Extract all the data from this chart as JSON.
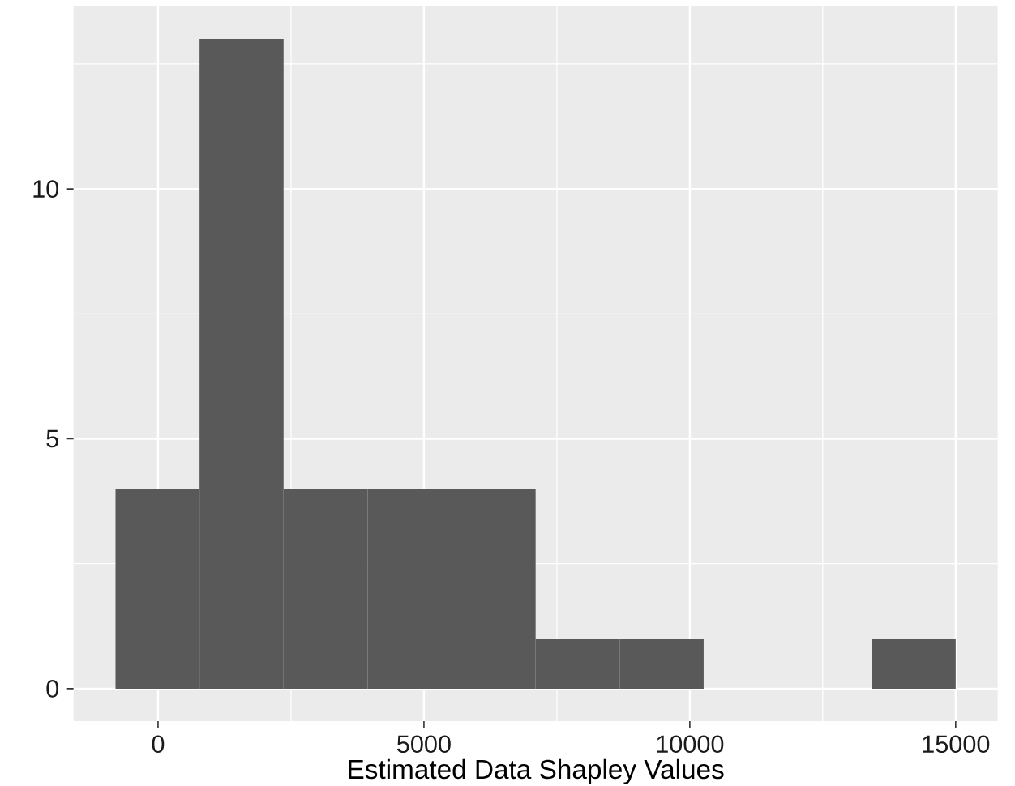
{
  "chart_data": {
    "type": "histogram",
    "xlabel": "Estimated Data Shapley Values",
    "bins": [
      -800,
      780,
      2360,
      3940,
      5520,
      7100,
      8680,
      10260,
      11840,
      13420,
      15000
    ],
    "values": [
      4,
      13,
      4,
      4,
      4,
      1,
      1,
      0,
      0,
      1
    ],
    "color": "#595959",
    "xlim": [
      -1590,
      15790
    ],
    "ylim": [
      -0.65,
      13.65
    ],
    "xticks": [
      0,
      5000,
      10000,
      15000
    ],
    "yticks": [
      0,
      5,
      10
    ],
    "grid": true
  }
}
